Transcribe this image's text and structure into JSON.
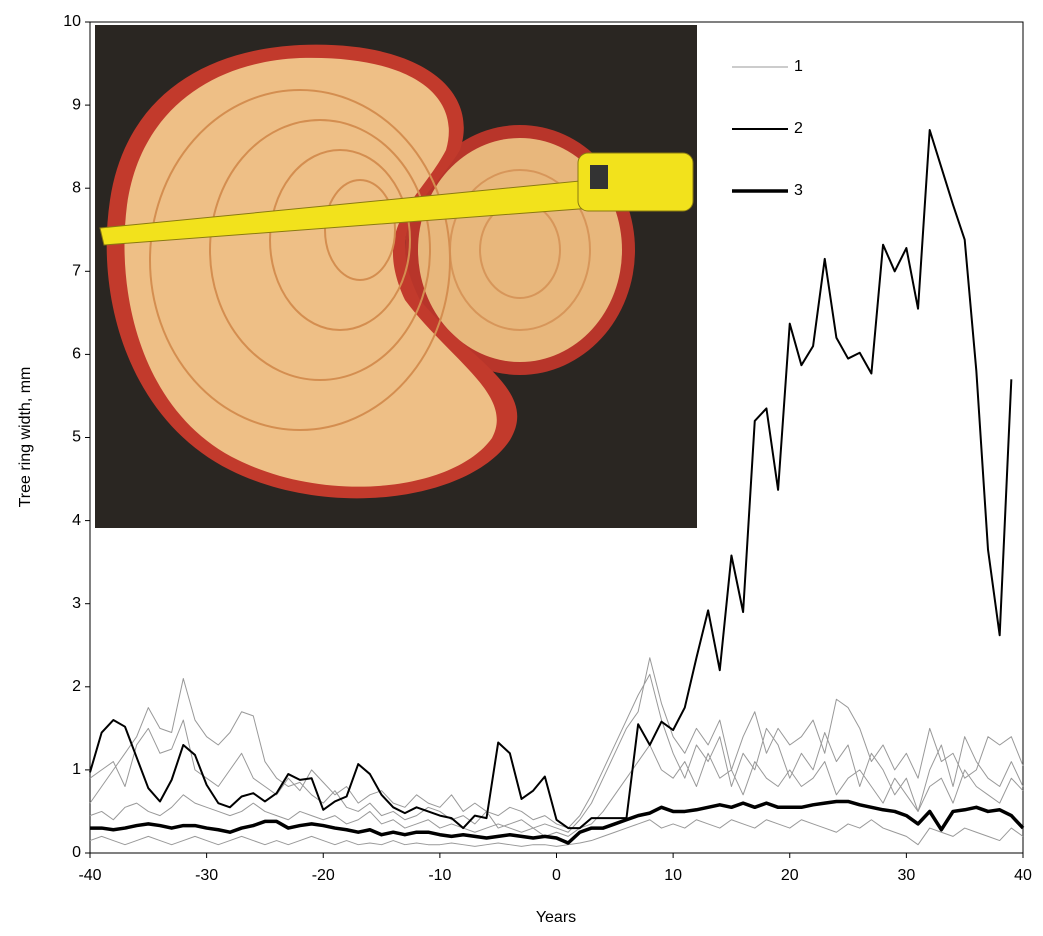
{
  "chart_data": {
    "type": "line",
    "x_label": "Years",
    "y_label": "Tree ring width, mm",
    "xlim": [
      -40,
      40
    ],
    "xticks": [
      -40,
      -30,
      -20,
      -10,
      0,
      10,
      20,
      30,
      40
    ],
    "ylim": [
      0,
      10
    ],
    "yticks": [
      0,
      1,
      2,
      3,
      4,
      5,
      6,
      7,
      8,
      9,
      10
    ],
    "x": [
      -40,
      -39,
      -38,
      -37,
      -36,
      -35,
      -34,
      -33,
      -32,
      -31,
      -30,
      -29,
      -28,
      -27,
      -26,
      -25,
      -24,
      -23,
      -22,
      -21,
      -20,
      -19,
      -18,
      -17,
      -16,
      -15,
      -14,
      -13,
      -12,
      -11,
      -10,
      -9,
      -8,
      -7,
      -6,
      -5,
      -4,
      -3,
      -2,
      -1,
      0,
      1,
      2,
      3,
      4,
      5,
      6,
      7,
      8,
      9,
      10,
      11,
      12,
      13,
      14,
      15,
      16,
      17,
      18,
      19,
      20,
      21,
      22,
      23,
      24,
      25,
      26,
      27,
      28,
      29,
      30,
      31,
      32,
      33,
      34,
      35,
      36,
      37,
      38,
      39,
      40
    ],
    "series": [
      {
        "name": "1",
        "color": "#999999",
        "width": 1,
        "lines": [
          [
            0.6,
            0.8,
            1.0,
            1.2,
            1.4,
            1.75,
            1.5,
            1.45,
            2.1,
            1.6,
            1.4,
            1.3,
            1.45,
            1.7,
            1.65,
            1.1,
            0.9,
            0.8,
            0.85,
            0.7,
            0.6,
            0.75,
            0.55,
            0.5,
            0.6,
            0.45,
            0.5,
            0.4,
            0.45,
            0.55,
            0.5,
            0.4,
            0.45,
            0.35,
            0.5,
            0.3,
            0.35,
            0.4,
            0.3,
            0.35,
            0.3,
            0.25,
            0.4,
            0.6,
            0.9,
            1.2,
            1.5,
            1.7,
            2.35,
            1.8,
            1.4,
            1.2,
            1.5,
            1.3,
            1.6,
            1.0,
            1.4,
            1.7,
            1.2,
            1.5,
            1.3,
            1.4,
            1.6,
            1.2,
            1.85,
            1.75,
            1.5,
            1.1,
            1.3,
            1.0,
            1.2,
            0.9,
            1.5,
            1.1,
            1.2,
            0.9,
            1.0,
            1.4,
            1.3,
            1.4,
            1.05
          ],
          [
            0.45,
            0.5,
            0.4,
            0.55,
            0.6,
            0.5,
            0.45,
            0.55,
            0.7,
            0.6,
            0.55,
            0.5,
            0.45,
            0.5,
            0.6,
            0.5,
            0.45,
            0.4,
            0.5,
            0.45,
            0.4,
            0.45,
            0.35,
            0.4,
            0.5,
            0.35,
            0.4,
            0.3,
            0.35,
            0.4,
            0.3,
            0.35,
            0.3,
            0.25,
            0.3,
            0.35,
            0.3,
            0.25,
            0.3,
            0.2,
            0.25,
            0.2,
            0.3,
            0.35,
            0.5,
            0.7,
            0.9,
            1.1,
            1.3,
            1.0,
            0.9,
            1.1,
            0.8,
            1.2,
            0.9,
            1.0,
            0.7,
            1.1,
            0.9,
            0.8,
            1.0,
            0.8,
            0.9,
            1.1,
            0.7,
            0.9,
            1.0,
            0.8,
            0.6,
            0.9,
            0.7,
            0.5,
            0.8,
            0.9,
            0.6,
            1.0,
            0.8,
            0.7,
            0.6,
            0.9,
            0.75
          ],
          [
            0.15,
            0.2,
            0.15,
            0.1,
            0.15,
            0.2,
            0.15,
            0.1,
            0.15,
            0.2,
            0.15,
            0.1,
            0.15,
            0.2,
            0.15,
            0.1,
            0.15,
            0.1,
            0.15,
            0.2,
            0.15,
            0.1,
            0.15,
            0.1,
            0.12,
            0.1,
            0.15,
            0.1,
            0.12,
            0.1,
            0.1,
            0.12,
            0.1,
            0.08,
            0.1,
            0.12,
            0.1,
            0.08,
            0.1,
            0.1,
            0.08,
            0.1,
            0.12,
            0.15,
            0.2,
            0.25,
            0.3,
            0.35,
            0.4,
            0.3,
            0.35,
            0.3,
            0.4,
            0.35,
            0.3,
            0.4,
            0.35,
            0.3,
            0.4,
            0.35,
            0.3,
            0.4,
            0.35,
            0.3,
            0.25,
            0.35,
            0.3,
            0.4,
            0.3,
            0.25,
            0.2,
            0.1,
            0.3,
            0.25,
            0.2,
            0.3,
            0.25,
            0.2,
            0.15,
            0.3,
            0.2
          ],
          [
            0.9,
            1.0,
            1.1,
            0.8,
            1.3,
            1.5,
            1.2,
            1.25,
            1.6,
            1.0,
            0.9,
            0.8,
            1.0,
            1.2,
            0.9,
            0.8,
            0.7,
            0.9,
            0.75,
            1.0,
            0.85,
            0.7,
            0.8,
            0.6,
            0.7,
            0.75,
            0.6,
            0.55,
            0.7,
            0.6,
            0.55,
            0.7,
            0.5,
            0.6,
            0.5,
            0.45,
            0.55,
            0.5,
            0.4,
            0.45,
            0.35,
            0.3,
            0.45,
            0.7,
            1.0,
            1.3,
            1.6,
            1.9,
            2.15,
            1.6,
            1.2,
            0.9,
            1.3,
            1.1,
            1.4,
            0.8,
            1.2,
            1.0,
            1.5,
            1.3,
            0.9,
            1.2,
            1.0,
            1.45,
            1.1,
            1.3,
            0.8,
            1.2,
            1.0,
            0.7,
            0.9,
            0.5,
            1.0,
            1.3,
            0.8,
            1.4,
            1.1,
            0.9,
            0.8,
            1.1,
            0.8
          ]
        ]
      },
      {
        "name": "2",
        "color": "#000000",
        "width": 2,
        "lines": [
          [
            0.97,
            1.45,
            1.6,
            1.52,
            1.15,
            0.78,
            0.62,
            0.88,
            1.3,
            1.18,
            0.82,
            0.6,
            0.55,
            0.68,
            0.72,
            0.62,
            0.72,
            0.95,
            0.88,
            0.9,
            0.52,
            0.62,
            0.68,
            1.07,
            0.95,
            0.7,
            0.55,
            0.48,
            0.55,
            0.5,
            0.45,
            0.42,
            0.3,
            0.45,
            0.42,
            1.33,
            1.2,
            0.65,
            0.75,
            0.92,
            0.4,
            0.3,
            0.3,
            0.42,
            0.42,
            0.42,
            0.42,
            1.55,
            1.3,
            1.58,
            1.48,
            1.75,
            2.35,
            2.92,
            2.2,
            3.58,
            2.9,
            5.2,
            5.35,
            4.37,
            6.37,
            5.87,
            6.1,
            7.15,
            6.2,
            5.95,
            6.02,
            5.77,
            7.32,
            7.0,
            7.28,
            6.55,
            8.7,
            8.25,
            7.8,
            7.38,
            5.8,
            3.65,
            2.62,
            5.7,
            null
          ]
        ]
      },
      {
        "name": "3",
        "color": "#000000",
        "width": 3.5,
        "lines": [
          [
            0.3,
            0.3,
            0.28,
            0.3,
            0.33,
            0.35,
            0.33,
            0.3,
            0.33,
            0.33,
            0.3,
            0.28,
            0.25,
            0.3,
            0.33,
            0.38,
            0.38,
            0.3,
            0.33,
            0.35,
            0.33,
            0.3,
            0.28,
            0.25,
            0.28,
            0.22,
            0.25,
            0.22,
            0.25,
            0.25,
            0.22,
            0.2,
            0.22,
            0.2,
            0.18,
            0.2,
            0.22,
            0.2,
            0.18,
            0.2,
            0.18,
            0.12,
            0.25,
            0.3,
            0.3,
            0.35,
            0.4,
            0.45,
            0.48,
            0.55,
            0.5,
            0.5,
            0.52,
            0.55,
            0.58,
            0.55,
            0.6,
            0.55,
            0.6,
            0.55,
            0.55,
            0.55,
            0.58,
            0.6,
            0.62,
            0.62,
            0.58,
            0.55,
            0.52,
            0.5,
            0.45,
            0.35,
            0.5,
            0.28,
            0.5,
            0.52,
            0.55,
            0.5,
            0.52,
            0.45,
            0.3
          ]
        ]
      }
    ]
  }
}
